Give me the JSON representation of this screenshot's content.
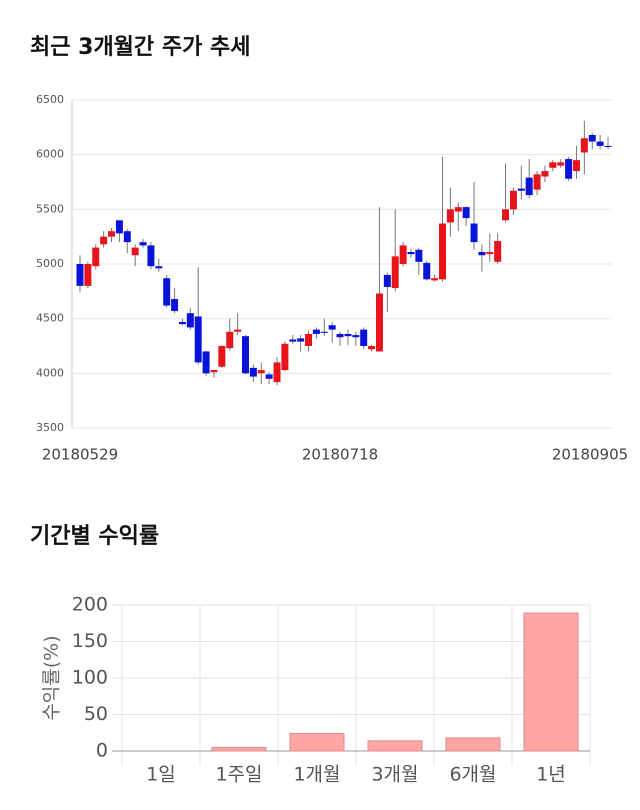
{
  "chart_data": [
    {
      "type": "candlestick",
      "title": "최근 3개월간 주가 추세",
      "categories": [
        "20180529",
        null,
        null,
        null,
        null,
        null,
        null,
        null,
        null,
        null,
        null,
        null,
        null,
        null,
        null,
        null,
        null,
        null,
        null,
        null,
        null,
        null,
        null,
        null,
        null,
        null,
        null,
        null,
        null,
        null,
        null,
        null,
        null,
        "20180718",
        null,
        null,
        null,
        null,
        null,
        null,
        null,
        null,
        null,
        null,
        null,
        null,
        null,
        null,
        null,
        null,
        null,
        null,
        null,
        null,
        null,
        null,
        null,
        null,
        null,
        null,
        null,
        null,
        null,
        null,
        null,
        "20180905",
        null,
        null
      ],
      "open": [
        5000,
        4800,
        4980,
        5180,
        5250,
        5400,
        5300,
        5080,
        5200,
        5170,
        4980,
        4870,
        4680,
        4470,
        4550,
        4520,
        4200,
        4010,
        4060,
        4230,
        4380,
        4340,
        4050,
        4000,
        3990,
        3920,
        4030,
        4310,
        4320,
        4250,
        4400,
        4380,
        4440,
        4360,
        4360,
        4350,
        4400,
        4220,
        4200,
        4900,
        4780,
        5000,
        5110,
        5130,
        5010,
        4850,
        4860,
        5380,
        5480,
        5520,
        5370,
        5110,
        5090,
        5020,
        5400,
        5500,
        5690,
        5790,
        5680,
        5800,
        5880,
        5900,
        5960,
        5850,
        6020,
        6180,
        6120,
        6080
      ],
      "high": [
        5080,
        5020,
        5180,
        5300,
        5330,
        5400,
        5320,
        5180,
        5230,
        5200,
        5050,
        4900,
        4780,
        4500,
        4600,
        4970,
        4210,
        4030,
        4260,
        4500,
        4550,
        4350,
        4080,
        4100,
        4010,
        4150,
        4290,
        4350,
        4350,
        4390,
        4420,
        4500,
        4470,
        4380,
        4400,
        4380,
        4420,
        4260,
        5520,
        4920,
        5500,
        5200,
        5140,
        5150,
        5030,
        4900,
        5980,
        5700,
        5560,
        5530,
        5750,
        5180,
        5280,
        5280,
        5920,
        5700,
        5900,
        5960,
        5850,
        5900,
        5950,
        5960,
        5980,
        6080,
        6310,
        6200,
        6180,
        6160
      ],
      "low": [
        4740,
        4780,
        4950,
        5150,
        5200,
        5200,
        5100,
        4980,
        5150,
        4950,
        4930,
        4600,
        4550,
        4440,
        4400,
        4080,
        3980,
        3960,
        4050,
        4210,
        4350,
        3990,
        3920,
        3900,
        3900,
        3890,
        4020,
        4270,
        4200,
        4200,
        4320,
        4340,
        4280,
        4250,
        4260,
        4250,
        4220,
        4200,
        4200,
        4560,
        4750,
        4980,
        5060,
        4900,
        4850,
        4840,
        4840,
        5250,
        5300,
        5350,
        5130,
        4930,
        5020,
        5000,
        5380,
        5450,
        5590,
        5600,
        5630,
        5750,
        5850,
        5880,
        5760,
        5780,
        5820,
        6050,
        6050,
        6050
      ],
      "close": [
        4800,
        5000,
        5150,
        5250,
        5300,
        5280,
        5200,
        5150,
        5170,
        4980,
        4960,
        4620,
        4570,
        4450,
        4420,
        4100,
        4000,
        4030,
        4250,
        4380,
        4400,
        4000,
        3970,
        4030,
        3950,
        4100,
        4270,
        4290,
        4290,
        4360,
        4360,
        4370,
        4400,
        4330,
        4340,
        4330,
        4250,
        4250,
        4730,
        4790,
        5070,
        5170,
        5090,
        5020,
        4860,
        4870,
        5370,
        5500,
        5520,
        5420,
        5200,
        5080,
        5110,
        5210,
        5500,
        5670,
        5670,
        5630,
        5820,
        5850,
        5930,
        5930,
        5780,
        5950,
        6150,
        6120,
        6080,
        6070
      ],
      "up_color": "#e8141c",
      "down_color": "#0a14d8",
      "ylim": [
        3500,
        6500
      ],
      "yticks": [
        3500,
        4000,
        4500,
        5000,
        5500,
        6000,
        6500
      ],
      "grid": true
    },
    {
      "type": "bar",
      "title": "기간별 수익률",
      "ylabel": "수익률(%)",
      "categories": [
        "1일",
        "1주일",
        "1개월",
        "3개월",
        "6개월",
        "1년"
      ],
      "values": [
        0,
        5,
        24,
        14,
        18,
        189
      ],
      "color": "#ffa6a6",
      "ylim": [
        0,
        200
      ],
      "yticks": [
        0,
        50,
        100,
        150,
        200
      ],
      "grid": true
    }
  ]
}
